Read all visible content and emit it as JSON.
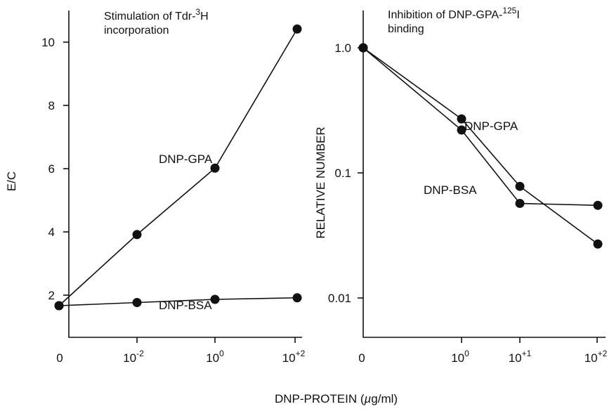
{
  "chart_data": [
    {
      "type": "line",
      "title": "Stimulation of Tdr-3H incorporation",
      "title_lines": [
        "Stimulation of Tdr-3H",
        "incorporation"
      ],
      "ylabel": "E/C",
      "xlabel": "DNP-PROTEIN (µg/ml)",
      "x_ticks": [
        "0",
        "10-2",
        "100",
        "10+2"
      ],
      "y_ticks": [
        "2",
        "4",
        "6",
        "8",
        "10"
      ],
      "ylim": [
        0,
        11
      ],
      "x_scale": "log (with zero point)",
      "grid": false,
      "series": [
        {
          "name": "DNP-GPA",
          "x": [
            "0",
            "10-2",
            "100",
            "10+2"
          ],
          "values": [
            1.0,
            3.25,
            5.35,
            9.75
          ]
        },
        {
          "name": "DNP-BSA",
          "x": [
            "0",
            "10-2",
            "100",
            "10+2"
          ],
          "values": [
            1.0,
            1.1,
            1.2,
            1.25
          ]
        }
      ]
    },
    {
      "type": "line",
      "title": "Inhibition of DNP-GPA-125I binding",
      "title_lines": [
        "Inhibition of DNP-GPA-125I",
        "binding"
      ],
      "ylabel": "RELATIVE NUMBER",
      "xlabel": "DNP-PROTEIN (µg/ml)",
      "x_ticks": [
        "0",
        "100",
        "10+1",
        "10+2"
      ],
      "y_ticks": [
        "1.0",
        "0.1",
        "0.01"
      ],
      "y_scale": "log",
      "ylim": [
        0.003,
        1.5
      ],
      "grid": false,
      "series": [
        {
          "name": "DNP-GPA",
          "x": [
            "0",
            "100",
            "10+1",
            "10+2"
          ],
          "values": [
            1.0,
            0.27,
            0.078,
            0.027
          ]
        },
        {
          "name": "DNP-BSA",
          "x": [
            "0",
            "100",
            "10+1",
            "10+2"
          ],
          "values": [
            1.0,
            0.22,
            0.057,
            0.055
          ]
        }
      ]
    }
  ]
}
